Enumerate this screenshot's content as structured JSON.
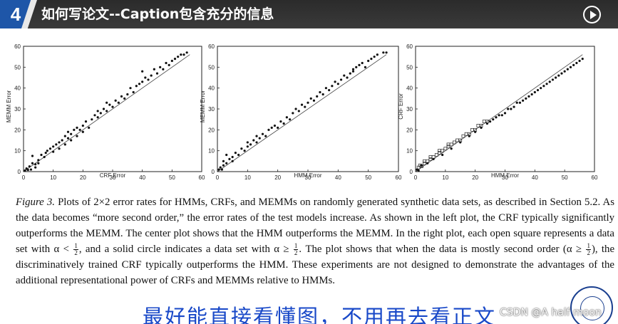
{
  "header": {
    "slide_number": "4",
    "title": "如何写论文--Caption包含充分的信息",
    "play_icon": "play-circle-icon"
  },
  "chart_data": [
    {
      "type": "scatter",
      "xlabel": "CRF Error",
      "ylabel": "MEMM Error",
      "xlim": [
        0,
        60
      ],
      "ylim": [
        0,
        60
      ],
      "xticks": [
        "0",
        "10",
        "20",
        "30",
        "40",
        "50",
        "60"
      ],
      "yticks": [
        "0",
        "10",
        "20",
        "30",
        "40",
        "50",
        "60"
      ],
      "reference_line": "y = x",
      "marker": "filled-dot",
      "points": [
        [
          0.5,
          0.5
        ],
        [
          1,
          1.5
        ],
        [
          1.5,
          0.8
        ],
        [
          2,
          2.5
        ],
        [
          2.5,
          1
        ],
        [
          3,
          4
        ],
        [
          3,
          7.5
        ],
        [
          4,
          2
        ],
        [
          4,
          3.5
        ],
        [
          5,
          4
        ],
        [
          5,
          5.5
        ],
        [
          6,
          8
        ],
        [
          7,
          7
        ],
        [
          7.5,
          9
        ],
        [
          8,
          10
        ],
        [
          9,
          11
        ],
        [
          10,
          9.5
        ],
        [
          10,
          12
        ],
        [
          11,
          13
        ],
        [
          12,
          11
        ],
        [
          12,
          14
        ],
        [
          13,
          15
        ],
        [
          14,
          13
        ],
        [
          14,
          17
        ],
        [
          15,
          16
        ],
        [
          15,
          19
        ],
        [
          16,
          15
        ],
        [
          16,
          18
        ],
        [
          17,
          20
        ],
        [
          18,
          17
        ],
        [
          18,
          21
        ],
        [
          19,
          20
        ],
        [
          20,
          22
        ],
        [
          20,
          19
        ],
        [
          21,
          24
        ],
        [
          22,
          21
        ],
        [
          23,
          25
        ],
        [
          24,
          27
        ],
        [
          25,
          26
        ],
        [
          25,
          29
        ],
        [
          26,
          28
        ],
        [
          27,
          30
        ],
        [
          28,
          33
        ],
        [
          28,
          29
        ],
        [
          29,
          32
        ],
        [
          30,
          31
        ],
        [
          31,
          34
        ],
        [
          32,
          33
        ],
        [
          33,
          36
        ],
        [
          34,
          35
        ],
        [
          35,
          37
        ],
        [
          36,
          40
        ],
        [
          37,
          38
        ],
        [
          38,
          41
        ],
        [
          39,
          42
        ],
        [
          40,
          43
        ],
        [
          40,
          48
        ],
        [
          41,
          45
        ],
        [
          42,
          44
        ],
        [
          43,
          46
        ],
        [
          44,
          49
        ],
        [
          45,
          47
        ],
        [
          46,
          50
        ],
        [
          47,
          49
        ],
        [
          48,
          52
        ],
        [
          49,
          51
        ],
        [
          50,
          53
        ],
        [
          51,
          54
        ],
        [
          52,
          55
        ],
        [
          53,
          56
        ],
        [
          54,
          56
        ],
        [
          55,
          57
        ]
      ]
    },
    {
      "type": "scatter",
      "xlabel": "HMM Error",
      "ylabel": "MEMM Error",
      "xlim": [
        0,
        60
      ],
      "ylim": [
        0,
        60
      ],
      "xticks": [
        "0",
        "10",
        "20",
        "30",
        "40",
        "50",
        "60"
      ],
      "yticks": [
        "0",
        "10",
        "20",
        "30",
        "40",
        "50",
        "60"
      ],
      "reference_line": "y = x",
      "marker": "filled-dot",
      "points": [
        [
          0.5,
          1
        ],
        [
          1,
          2
        ],
        [
          1.5,
          1
        ],
        [
          2,
          3
        ],
        [
          2,
          5
        ],
        [
          3,
          4
        ],
        [
          3,
          8
        ],
        [
          4,
          6
        ],
        [
          5,
          7
        ],
        [
          5,
          5
        ],
        [
          6,
          9
        ],
        [
          7,
          8
        ],
        [
          8,
          11
        ],
        [
          9,
          10
        ],
        [
          10,
          12
        ],
        [
          10,
          14
        ],
        [
          11,
          13
        ],
        [
          12,
          15
        ],
        [
          13,
          14
        ],
        [
          13,
          17
        ],
        [
          14,
          16
        ],
        [
          15,
          18
        ],
        [
          16,
          17
        ],
        [
          17,
          20
        ],
        [
          18,
          21
        ],
        [
          19,
          22
        ],
        [
          20,
          21
        ],
        [
          21,
          24
        ],
        [
          22,
          23
        ],
        [
          23,
          26
        ],
        [
          24,
          25
        ],
        [
          25,
          28
        ],
        [
          26,
          30
        ],
        [
          27,
          29
        ],
        [
          28,
          32
        ],
        [
          29,
          31
        ],
        [
          30,
          33
        ],
        [
          31,
          35
        ],
        [
          32,
          34
        ],
        [
          33,
          36
        ],
        [
          34,
          38
        ],
        [
          35,
          37
        ],
        [
          36,
          40
        ],
        [
          37,
          39
        ],
        [
          38,
          41
        ],
        [
          39,
          43
        ],
        [
          40,
          42
        ],
        [
          41,
          44
        ],
        [
          42,
          46
        ],
        [
          43,
          45
        ],
        [
          44,
          47
        ],
        [
          45,
          48
        ],
        [
          45,
          49
        ],
        [
          46,
          50
        ],
        [
          47,
          51
        ],
        [
          48,
          52
        ],
        [
          49,
          50
        ],
        [
          50,
          53
        ],
        [
          51,
          54
        ],
        [
          52,
          55
        ],
        [
          53,
          56
        ],
        [
          55,
          57
        ],
        [
          56,
          57
        ]
      ]
    },
    {
      "type": "scatter",
      "xlabel": "HMM Error",
      "ylabel": "CRF Error",
      "xlim": [
        0,
        60
      ],
      "ylim": [
        0,
        60
      ],
      "xticks": [
        "0",
        "10",
        "20",
        "30",
        "40",
        "50",
        "60"
      ],
      "yticks": [
        "0",
        "10",
        "20",
        "30",
        "40",
        "50",
        "60"
      ],
      "reference_line": "y = x",
      "series": [
        {
          "name": "α < 1/2",
          "marker": "open-square",
          "points": [
            [
              1,
              2
            ],
            [
              1.5,
              3
            ],
            [
              2,
              2.5
            ],
            [
              3,
              4
            ],
            [
              3,
              5
            ],
            [
              4,
              5
            ],
            [
              5,
              6
            ],
            [
              5,
              7
            ],
            [
              6,
              7
            ],
            [
              7,
              8
            ],
            [
              8,
              9
            ],
            [
              8,
              10
            ],
            [
              9,
              10
            ],
            [
              10,
              11
            ],
            [
              11,
              12
            ],
            [
              11,
              13
            ],
            [
              12,
              13
            ],
            [
              13,
              14
            ],
            [
              14,
              15
            ],
            [
              15,
              15
            ],
            [
              16,
              17
            ],
            [
              17,
              18
            ],
            [
              18,
              18
            ],
            [
              19,
              20
            ],
            [
              20,
              20
            ],
            [
              21,
              22
            ],
            [
              22,
              22
            ],
            [
              23,
              24
            ],
            [
              24,
              24
            ]
          ]
        },
        {
          "name": "α ≥ 1/2",
          "marker": "filled-dot",
          "points": [
            [
              0.5,
              1
            ],
            [
              1,
              0.5
            ],
            [
              2,
              3
            ],
            [
              4,
              4
            ],
            [
              6,
              6
            ],
            [
              9,
              8
            ],
            [
              12,
              11
            ],
            [
              15,
              14
            ],
            [
              18,
              17
            ],
            [
              20,
              19
            ],
            [
              22,
              21
            ],
            [
              24,
              23
            ],
            [
              25,
              24
            ],
            [
              26,
              25
            ],
            [
              27,
              26
            ],
            [
              28,
              27
            ],
            [
              29,
              27
            ],
            [
              30,
              28
            ],
            [
              31,
              30
            ],
            [
              32,
              30
            ],
            [
              33,
              31
            ],
            [
              34,
              33
            ],
            [
              35,
              33
            ],
            [
              36,
              34
            ],
            [
              37,
              35
            ],
            [
              38,
              36
            ],
            [
              39,
              37
            ],
            [
              40,
              38
            ],
            [
              41,
              39
            ],
            [
              42,
              40
            ],
            [
              43,
              41
            ],
            [
              44,
              42
            ],
            [
              45,
              43
            ],
            [
              46,
              44
            ],
            [
              47,
              45
            ],
            [
              48,
              46
            ],
            [
              49,
              47
            ],
            [
              50,
              48
            ],
            [
              51,
              49
            ],
            [
              52,
              50
            ],
            [
              53,
              51
            ],
            [
              54,
              52
            ],
            [
              55,
              53
            ],
            [
              56,
              54
            ]
          ]
        }
      ]
    }
  ],
  "caption": {
    "label": "Figure 3.",
    "seg1": " Plots of 2×2 error rates for HMMs, CRFs, and MEMMs on randomly generated synthetic data sets, as described in Section 5.2. As the data becomes “more second order,” the error rates of the test models increase. As shown in the left plot, the CRF typically significantly outperforms the MEMM. The center plot shows that the HMM outperforms the MEMM. In the right plot, each open square represents a data set with α <",
    "seg2": ", and a solid circle indicates a data set with α ≥",
    "seg3": ". The plot shows that when the data is mostly second order (α ≥",
    "seg4": "), the discriminatively trained CRF typically outperforms the HMM. These experiments are not designed to demonstrate the advantages of the additional representational power of CRFs and MEMMs relative to HMMs.",
    "frac_num": "1",
    "frac_den": "2"
  },
  "note": "最好能直接看懂图，不用再去看正文",
  "watermark": "CSDN @A half moon",
  "logo_icon": "university-seal-icon",
  "colors": {
    "header": "#333333",
    "slide_number_bg": "#1e56a8",
    "note": "#1848c8"
  }
}
